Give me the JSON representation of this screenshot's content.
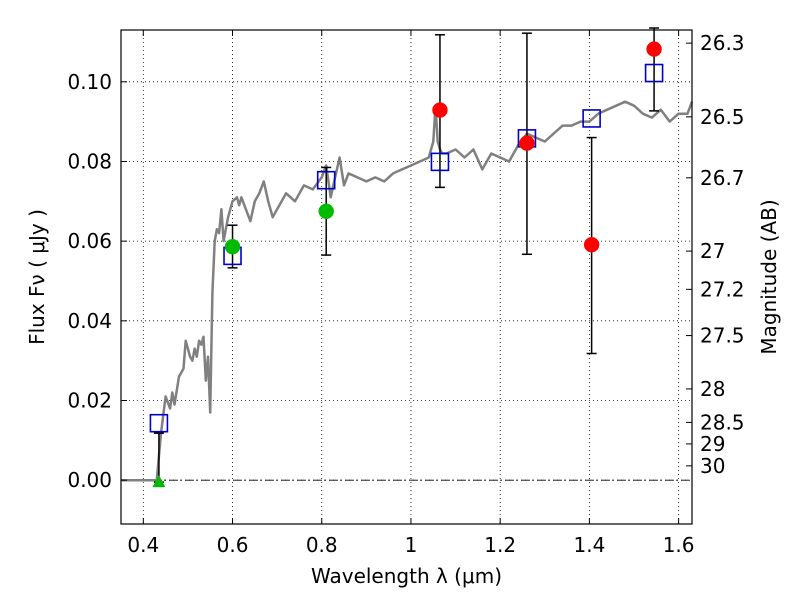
{
  "chart_data": {
    "type": "scatter",
    "xlabel": "Wavelength  λ (μm)",
    "ylabel": "Flux  Fν  ( μJy )",
    "ylabel_right": "Magnitude (AB)",
    "xlim": [
      0.35,
      1.63
    ],
    "ylim": [
      -0.011,
      0.113
    ],
    "x_ticks": [
      0.4,
      0.6,
      0.8,
      1.0,
      1.2,
      1.4,
      1.6
    ],
    "x_tick_labels": [
      "0.4",
      "0.6",
      "0.8",
      "1",
      "1.2",
      "1.4",
      "1.6"
    ],
    "y_ticks": [
      0.0,
      0.02,
      0.04,
      0.06,
      0.08,
      0.1
    ],
    "y_tick_labels": [
      "0.00",
      "0.02",
      "0.04",
      "0.06",
      "0.08",
      "0.10"
    ],
    "right_ticks": [
      {
        "label": "26.3",
        "flux": 0.1097
      },
      {
        "label": "26.5",
        "flux": 0.0912
      },
      {
        "label": "26.7",
        "flux": 0.0759
      },
      {
        "label": "27",
        "flux": 0.0575
      },
      {
        "label": "27.2",
        "flux": 0.0479
      },
      {
        "label": "27.5",
        "flux": 0.0363
      },
      {
        "label": "28",
        "flux": 0.0229
      },
      {
        "label": "28.5",
        "flux": 0.0145
      },
      {
        "label": "29",
        "flux": 0.0091
      },
      {
        "label": "30",
        "flux": 0.0036
      }
    ],
    "grid": true,
    "colors": {
      "model": "#808080",
      "model_photometry": "#0000cc",
      "observed_red": "#ff0000",
      "observed_green": "#00bb00",
      "errorbar": "#000000"
    },
    "series": [
      {
        "kind": "line",
        "x": [
          0.35,
          0.43,
          0.44,
          0.45,
          0.46,
          0.465,
          0.47,
          0.48,
          0.49,
          0.495,
          0.5,
          0.505,
          0.51,
          0.515,
          0.52,
          0.525,
          0.53,
          0.535,
          0.54,
          0.545,
          0.55,
          0.555,
          0.56,
          0.565,
          0.57,
          0.575,
          0.58,
          0.585,
          0.59,
          0.6,
          0.61,
          0.615,
          0.62,
          0.63,
          0.64,
          0.65,
          0.66,
          0.67,
          0.68,
          0.69,
          0.7,
          0.72,
          0.74,
          0.76,
          0.78,
          0.8,
          0.81,
          0.82,
          0.83,
          0.84,
          0.85,
          0.86,
          0.88,
          0.9,
          0.92,
          0.94,
          0.96,
          0.98,
          1.0,
          1.02,
          1.04,
          1.05,
          1.055,
          1.06,
          1.065,
          1.07,
          1.08,
          1.1,
          1.12,
          1.14,
          1.16,
          1.18,
          1.2,
          1.22,
          1.24,
          1.26,
          1.28,
          1.3,
          1.32,
          1.34,
          1.36,
          1.38,
          1.4,
          1.42,
          1.44,
          1.46,
          1.48,
          1.5,
          1.52,
          1.54,
          1.56,
          1.58,
          1.6,
          1.62,
          1.63
        ],
        "y": [
          0.0,
          0.0,
          0.012,
          0.021,
          0.018,
          0.022,
          0.019,
          0.026,
          0.028,
          0.035,
          0.033,
          0.031,
          0.03,
          0.033,
          0.031,
          0.035,
          0.034,
          0.036,
          0.025,
          0.031,
          0.017,
          0.047,
          0.06,
          0.063,
          0.062,
          0.068,
          0.06,
          0.063,
          0.066,
          0.07,
          0.071,
          0.069,
          0.071,
          0.068,
          0.065,
          0.07,
          0.072,
          0.075,
          0.07,
          0.066,
          0.068,
          0.072,
          0.07,
          0.074,
          0.073,
          0.076,
          0.079,
          0.071,
          0.076,
          0.081,
          0.074,
          0.077,
          0.076,
          0.075,
          0.076,
          0.075,
          0.077,
          0.078,
          0.079,
          0.08,
          0.081,
          0.085,
          0.094,
          0.085,
          0.083,
          0.082,
          0.082,
          0.083,
          0.081,
          0.083,
          0.078,
          0.082,
          0.081,
          0.08,
          0.084,
          0.087,
          0.086,
          0.085,
          0.087,
          0.089,
          0.089,
          0.09,
          0.09,
          0.092,
          0.093,
          0.094,
          0.095,
          0.094,
          0.092,
          0.091,
          0.093,
          0.09,
          0.092,
          0.092,
          0.095
        ]
      },
      {
        "kind": "open-square",
        "x": [
          0.435,
          0.6,
          0.81,
          1.065,
          1.26,
          1.405,
          1.545
        ],
        "y": [
          0.0143,
          0.0563,
          0.0753,
          0.0799,
          0.0858,
          0.0908,
          0.1022
        ]
      },
      {
        "kind": "circle-red",
        "x": [
          1.065,
          1.26,
          1.405,
          1.545
        ],
        "y": [
          0.0929,
          0.0846,
          0.0591,
          0.1082
        ],
        "yerr_low": [
          0.0735,
          0.0567,
          0.0318,
          0.0927
        ],
        "yerr_high": [
          0.1118,
          0.1122,
          0.086,
          0.1135
        ]
      },
      {
        "kind": "circle-green",
        "x": [
          0.6,
          0.81
        ],
        "y": [
          0.0586,
          0.0675
        ],
        "yerr_low": [
          0.0533,
          0.0565
        ],
        "yerr_high": [
          0.064,
          0.0785
        ]
      },
      {
        "kind": "triangle-green",
        "x": [
          0.435
        ],
        "y": [
          -0.0005
        ],
        "yerr_low": [
          -0.0005
        ],
        "yerr_high": [
          0.0118
        ]
      }
    ]
  }
}
